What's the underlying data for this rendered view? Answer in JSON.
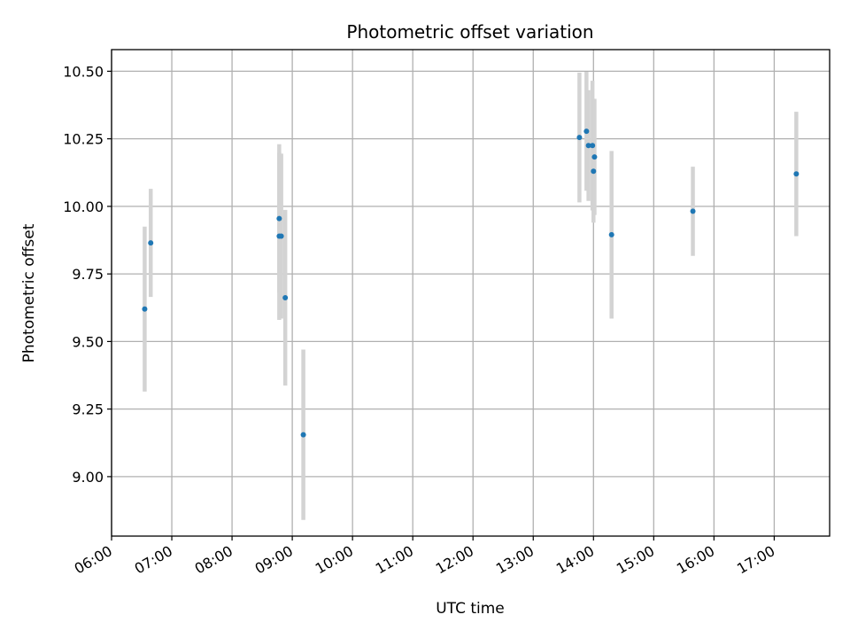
{
  "chart_data": {
    "type": "scatter",
    "title": "Photometric offset variation",
    "xlabel": "UTC time",
    "ylabel": "Photometric offset",
    "x_tick_labels": [
      "06:00",
      "07:00",
      "08:00",
      "09:00",
      "10:00",
      "11:00",
      "12:00",
      "13:00",
      "14:00",
      "15:00",
      "16:00",
      "17:00"
    ],
    "y_tick_labels": [
      "9.00",
      "9.25",
      "9.50",
      "9.75",
      "10.00",
      "10.25",
      "10.50"
    ],
    "x_ticks_hours": [
      6,
      7,
      8,
      9,
      10,
      11,
      12,
      13,
      14,
      15,
      16,
      17
    ],
    "y_ticks": [
      9.0,
      9.25,
      9.5,
      9.75,
      10.0,
      10.25,
      10.5
    ],
    "xlim_hours": [
      6.0,
      17.92
    ],
    "ylim": [
      8.78,
      10.58
    ],
    "grid": true,
    "colors": {
      "point": "#1f77b4",
      "errorbar": "#d3d3d3",
      "grid": "#b0b0b0"
    },
    "points": [
      {
        "x": "06:33",
        "y": 9.62,
        "err": 0.305
      },
      {
        "x": "06:39",
        "y": 9.865,
        "err": 0.2
      },
      {
        "x": "08:47",
        "y": 9.955,
        "err": 0.275
      },
      {
        "x": "08:47",
        "y": 9.89,
        "err": 0.31
      },
      {
        "x": "08:49",
        "y": 9.89,
        "err": 0.305
      },
      {
        "x": "08:53",
        "y": 9.662,
        "err": 0.325
      },
      {
        "x": "09:11",
        "y": 9.155,
        "err": 0.315
      },
      {
        "x": "13:46",
        "y": 10.255,
        "err": 0.24
      },
      {
        "x": "13:53",
        "y": 10.278,
        "err": 0.22
      },
      {
        "x": "13:55",
        "y": 10.225,
        "err": 0.205
      },
      {
        "x": "13:59",
        "y": 10.225,
        "err": 0.24
      },
      {
        "x": "14:00",
        "y": 10.13,
        "err": 0.19
      },
      {
        "x": "14:01",
        "y": 10.183,
        "err": 0.215
      },
      {
        "x": "14:18",
        "y": 9.895,
        "err": 0.31
      },
      {
        "x": "15:39",
        "y": 9.982,
        "err": 0.165
      },
      {
        "x": "17:22",
        "y": 10.12,
        "err": 0.23
      }
    ]
  }
}
